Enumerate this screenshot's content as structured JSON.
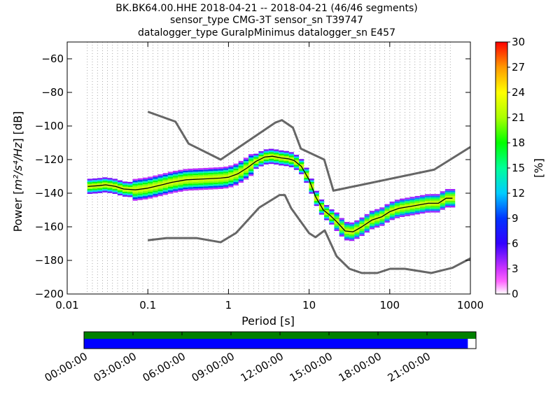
{
  "chart_data": {
    "type": "heatmap",
    "title_lines": [
      "BK.BK64.00.HHE   2018-04-21 -- 2018-04-21  (46/46 segments)",
      "sensor_type CMG-3T sensor_sn T39747",
      "datalogger_type GuralpMinimus datalogger_sn E457"
    ],
    "xlabel": "Period [s]",
    "ylabel_prefix": "Power [",
    "ylabel_units": "m²/s⁴/Hz",
    "ylabel_suffix": "] [dB]",
    "xscale": "log",
    "xlim": [
      0.01,
      1000
    ],
    "ylim": [
      -200,
      -50
    ],
    "x_ticks": [
      {
        "v": 0.01,
        "label": "0.01"
      },
      {
        "v": 0.1,
        "label": "0.1"
      },
      {
        "v": 1,
        "label": "1"
      },
      {
        "v": 10,
        "label": "10"
      },
      {
        "v": 100,
        "label": "100"
      },
      {
        "v": 1000,
        "label": "1000"
      }
    ],
    "y_ticks": [
      {
        "v": -60,
        "label": "−60"
      },
      {
        "v": -80,
        "label": "−80"
      },
      {
        "v": -100,
        "label": "−100"
      },
      {
        "v": -120,
        "label": "−120"
      },
      {
        "v": -140,
        "label": "−140"
      },
      {
        "v": -160,
        "label": "−160"
      },
      {
        "v": -180,
        "label": "−180"
      },
      {
        "v": -200,
        "label": "−200"
      }
    ],
    "grid": "dotted vertical at frequency bins",
    "colorbar": {
      "label": "[%]",
      "range": [
        0,
        30
      ],
      "ticks": [
        {
          "v": 0,
          "label": "0"
        },
        {
          "v": 3,
          "label": "3"
        },
        {
          "v": 6,
          "label": "6"
        },
        {
          "v": 9,
          "label": "9"
        },
        {
          "v": 12,
          "label": "12"
        },
        {
          "v": 15,
          "label": "15"
        },
        {
          "v": 18,
          "label": "18"
        },
        {
          "v": 21,
          "label": "21"
        },
        {
          "v": 24,
          "label": "24"
        },
        {
          "v": 27,
          "label": "27"
        },
        {
          "v": 30,
          "label": "30"
        }
      ],
      "colormap": "pqlx"
    },
    "nhnm": {
      "x": [
        0.1,
        0.22,
        0.32,
        0.8,
        3.8,
        4.6,
        6.3,
        7.9,
        15.4,
        20,
        354.8,
        1000
      ],
      "y": [
        -91.5,
        -97.4,
        -110.5,
        -120,
        -98,
        -96.5,
        -101,
        -113.5,
        -120,
        -138.5,
        -126,
        -112.5
      ]
    },
    "nlnm": {
      "x": [
        0.1,
        0.17,
        0.4,
        0.8,
        1.24,
        2.4,
        4.3,
        5,
        6,
        10,
        12,
        15.6,
        21.9,
        31.6,
        45,
        70,
        101,
        154,
        328,
        600,
        1000
      ],
      "y": [
        -168,
        -166.7,
        -166.7,
        -169.2,
        -163.7,
        -148.6,
        -141.1,
        -141.1,
        -149,
        -163.8,
        -166.2,
        -162.1,
        -177.5,
        -185,
        -187.5,
        -187.5,
        -185,
        -185,
        -187.5,
        -184.4,
        -178.8
      ]
    },
    "mean_psd": {
      "x": [
        0.018,
        0.025,
        0.03,
        0.04,
        0.05,
        0.07,
        0.1,
        0.15,
        0.2,
        0.3,
        0.5,
        0.8,
        1.0,
        1.3,
        1.7,
        2.2,
        2.8,
        3.5,
        4.5,
        5.5,
        6.5,
        8,
        10,
        12,
        15,
        18,
        22,
        28,
        35,
        45,
        60,
        80,
        100,
        130,
        200,
        300,
        400,
        500,
        600
      ],
      "y": [
        -136,
        -135.5,
        -135,
        -136,
        -137.5,
        -138,
        -137,
        -135,
        -133.5,
        -132,
        -131.5,
        -131,
        -130.5,
        -128.5,
        -125,
        -121,
        -118.5,
        -118,
        -119,
        -119.5,
        -120.5,
        -124,
        -132,
        -142,
        -150,
        -153,
        -157,
        -162.5,
        -163,
        -160,
        -156,
        -154,
        -151,
        -149,
        -147.5,
        -146,
        -146,
        -143,
        -143
      ]
    },
    "data_availability": {
      "time_ticks": [
        "00:00:00",
        "03:00:00",
        "06:00:00",
        "09:00:00",
        "12:00:00",
        "15:00:00",
        "18:00:00",
        "21:00:00"
      ],
      "time_range_hours": [
        0,
        24
      ],
      "used_segment_end_hours": 23.5,
      "data_end_hours": 24,
      "colors": {
        "data": "#008000",
        "used": "#0000ff"
      }
    }
  }
}
